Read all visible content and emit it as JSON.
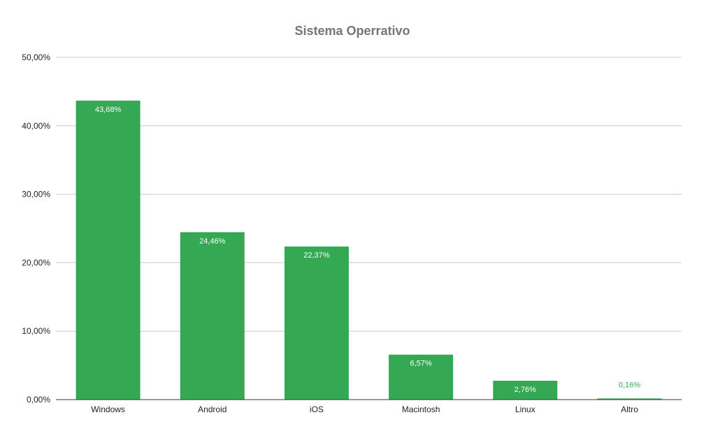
{
  "chart_data": {
    "type": "bar",
    "title": "Sistema Operrativo",
    "xlabel": "",
    "ylabel": "",
    "categories": [
      "Windows",
      "Android",
      "iOS",
      "Macintosh",
      "Linux",
      "Altro"
    ],
    "values": [
      43.68,
      24.46,
      22.37,
      6.57,
      2.76,
      0.16
    ],
    "data_labels": [
      "43,68%",
      "24,46%",
      "22,37%",
      "6,57%",
      "2,76%",
      "0,16%"
    ],
    "ylim": [
      0,
      50
    ],
    "yticks": [
      0,
      10,
      20,
      30,
      40,
      50
    ],
    "ytick_labels": [
      "0,00%",
      "10,00%",
      "20,00%",
      "30,00%",
      "40,00%",
      "50,00%"
    ],
    "grid": true,
    "legend": "none",
    "colors": {
      "bar": "#34a853",
      "label_inside": "#ffffff",
      "label_outside": "#34a853"
    }
  }
}
